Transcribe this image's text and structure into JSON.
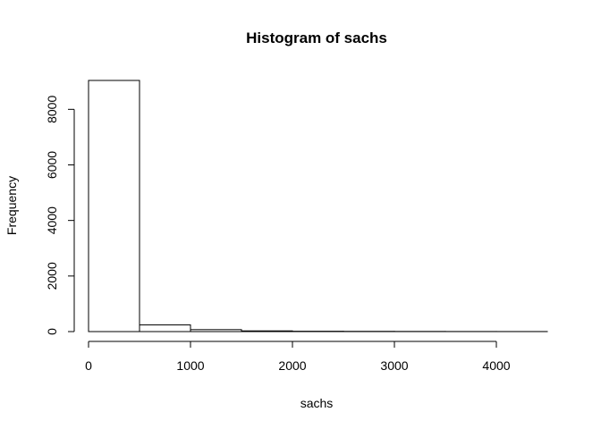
{
  "chart_data": {
    "type": "bar",
    "title": "Histogram of sachs",
    "xlabel": "sachs",
    "ylabel": "Frequency",
    "bin_edges": [
      0,
      500,
      1000,
      1500,
      2000,
      2500,
      3000,
      3500,
      4000,
      4500
    ],
    "values": [
      9040,
      240,
      70,
      25,
      12,
      8,
      5,
      3,
      2
    ],
    "xlim": [
      0,
      4500
    ],
    "ylim": [
      0,
      9040
    ],
    "x_ticks": [
      0,
      1000,
      2000,
      3000,
      4000
    ],
    "y_ticks": [
      0,
      2000,
      4000,
      6000,
      8000
    ],
    "x_tick_labels": [
      "0",
      "1000",
      "2000",
      "3000",
      "4000"
    ],
    "y_tick_labels": [
      "0",
      "2000",
      "4000",
      "6000",
      "8000"
    ],
    "grid": false,
    "bar_fill": "#ffffff",
    "bar_stroke": "#000000"
  }
}
